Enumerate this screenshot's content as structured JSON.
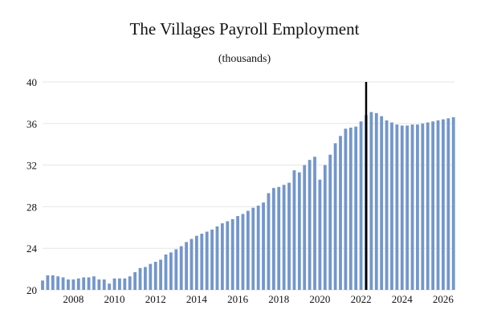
{
  "chart_data": {
    "type": "bar",
    "title": "The Villages Payroll Employment",
    "subtitle": "(thousands)",
    "xlabel": "",
    "ylabel": "",
    "ylim": [
      20,
      40
    ],
    "y_ticks": [
      "20",
      "24",
      "28",
      "32",
      "36",
      "40"
    ],
    "x_ticks": [
      "2008",
      "2010",
      "2012",
      "2014",
      "2016",
      "2018",
      "2020",
      "2022",
      "2024",
      "2026"
    ],
    "x_range": [
      2006.5,
      2026.55
    ],
    "bar_color": "#7396CC",
    "marker_line_color": "#000000",
    "marker_x": 2022.25,
    "grid": "horizontal",
    "x": [
      2006.5,
      2006.75,
      2007.0,
      2007.25,
      2007.5,
      2007.75,
      2008.0,
      2008.25,
      2008.5,
      2008.75,
      2009.0,
      2009.25,
      2009.5,
      2009.75,
      2010.0,
      2010.25,
      2010.5,
      2010.75,
      2011.0,
      2011.25,
      2011.5,
      2011.75,
      2012.0,
      2012.25,
      2012.5,
      2012.75,
      2013.0,
      2013.25,
      2013.5,
      2013.75,
      2014.0,
      2014.25,
      2014.5,
      2014.75,
      2015.0,
      2015.25,
      2015.5,
      2015.75,
      2016.0,
      2016.25,
      2016.5,
      2016.75,
      2017.0,
      2017.25,
      2017.5,
      2017.75,
      2018.0,
      2018.25,
      2018.5,
      2018.75,
      2019.0,
      2019.25,
      2019.5,
      2019.75,
      2020.0,
      2020.25,
      2020.5,
      2020.75,
      2021.0,
      2021.25,
      2021.5,
      2021.75,
      2022.0,
      2022.25,
      2022.5,
      2022.75,
      2023.0,
      2023.25,
      2023.5,
      2023.75,
      2024.0,
      2024.25,
      2024.5,
      2024.75,
      2025.0,
      2025.25,
      2025.5,
      2025.75,
      2026.0,
      2026.25,
      2026.5
    ],
    "values": [
      20.9,
      21.4,
      21.4,
      21.3,
      21.2,
      21.0,
      21.0,
      21.1,
      21.2,
      21.2,
      21.3,
      21.0,
      21.0,
      20.6,
      21.1,
      21.1,
      21.1,
      21.3,
      21.7,
      22.1,
      22.2,
      22.5,
      22.7,
      22.9,
      23.4,
      23.6,
      23.9,
      24.2,
      24.6,
      24.9,
      25.2,
      25.4,
      25.6,
      25.8,
      26.1,
      26.4,
      26.6,
      26.8,
      27.1,
      27.3,
      27.6,
      27.9,
      28.1,
      28.4,
      29.3,
      29.8,
      29.9,
      30.1,
      30.3,
      31.5,
      31.3,
      32.0,
      32.5,
      32.8,
      30.6,
      32.0,
      33.0,
      34.1,
      34.8,
      35.5,
      35.6,
      35.7,
      36.2,
      36.8,
      37.1,
      37.0,
      36.7,
      36.3,
      36.1,
      35.9,
      35.8,
      35.8,
      35.9,
      35.9,
      36.0,
      36.1,
      36.2,
      36.3,
      36.4,
      36.5,
      36.6
    ]
  }
}
